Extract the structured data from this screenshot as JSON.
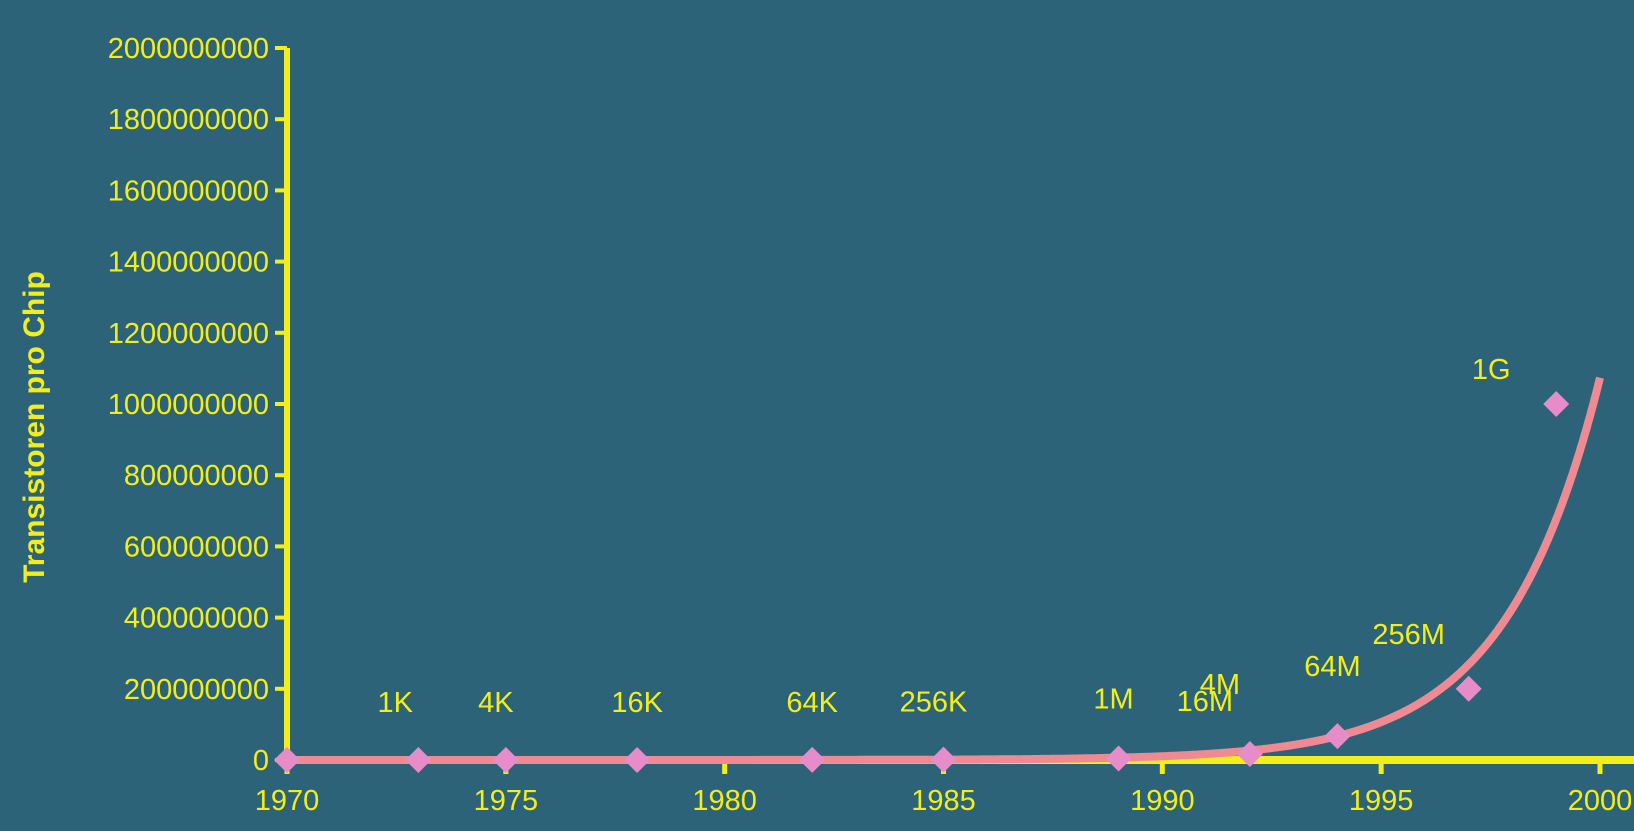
{
  "chart_data": {
    "type": "scatter",
    "title": "",
    "xlabel": "",
    "ylabel": "Transistoren pro Chip",
    "xlim": [
      1970,
      2000
    ],
    "ylim": [
      0,
      2000000000
    ],
    "xticks": [
      1970,
      1975,
      1980,
      1985,
      1990,
      1995,
      2000
    ],
    "yticks": [
      0,
      200000000,
      400000000,
      600000000,
      800000000,
      1000000000,
      1200000000,
      1400000000,
      1600000000,
      1800000000,
      2000000000
    ],
    "grid": false,
    "legend": "none",
    "series": [
      {
        "type": "scatter",
        "marker": "diamond",
        "points": [
          {
            "x": 1970,
            "y": 1024,
            "label": ""
          },
          {
            "x": 1973,
            "y": 4096,
            "label": "1K"
          },
          {
            "x": 1975,
            "y": 16384,
            "label": "4K"
          },
          {
            "x": 1978,
            "y": 65536,
            "label": "16K"
          },
          {
            "x": 1982,
            "y": 262144,
            "label": "64K"
          },
          {
            "x": 1985,
            "y": 1048576,
            "label": "256K"
          },
          {
            "x": 1989,
            "y": 4194304,
            "label": "1M"
          },
          {
            "x": 1992,
            "y": 16777216,
            "label": "4M"
          },
          {
            "x": 1994,
            "y": 67108864,
            "label": "64M"
          },
          {
            "x": 1997,
            "y": 200000000,
            "label": "256M"
          },
          {
            "x": 1999,
            "y": 1000000000,
            "label": "1G"
          }
        ]
      },
      {
        "type": "line",
        "trend": "exponential",
        "x_from": 1970,
        "x_to": 2000
      }
    ],
    "free_labels": [
      {
        "x": 1992,
        "y": 200000000,
        "label": "16M"
      }
    ]
  },
  "colors": {
    "background": "#2d6378",
    "axis": "#f2ee1c",
    "text": "#f2ee1c",
    "marker": "#e58cc9",
    "trend": "#ef8a92"
  }
}
